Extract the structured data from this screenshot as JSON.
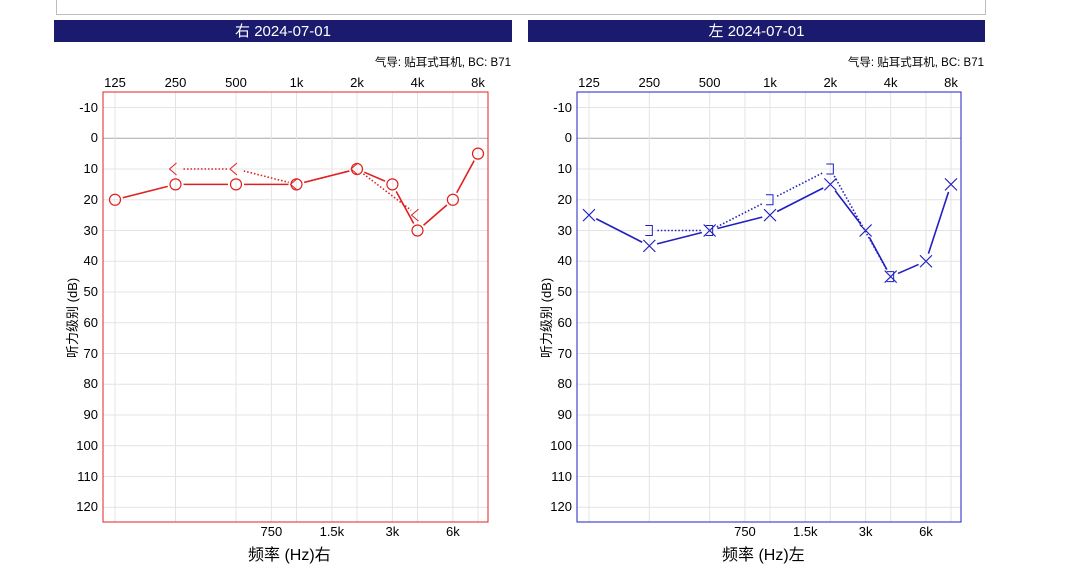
{
  "chart_data": [
    {
      "type": "line",
      "title": "右 2024-07-01",
      "subtitle": "气导: 贴耳式耳机, BC: B71",
      "xlabel": "频率 (Hz)右",
      "ylabel": "听力级别 (dB)",
      "x_ticks_top": [
        "125",
        "250",
        "500",
        "1k",
        "2k",
        "4k",
        "8k"
      ],
      "x_ticks_bottom": [
        "750",
        "1.5k",
        "3k",
        "6k"
      ],
      "y_ticks": [
        "-10",
        "0",
        "10",
        "20",
        "30",
        "40",
        "50",
        "60",
        "70",
        "80",
        "90",
        "100",
        "110",
        "120"
      ],
      "ylim": [
        -15,
        125
      ],
      "y_inverted": true,
      "color": "#e02020",
      "series": [
        {
          "marker": "circle",
          "style": "solid",
          "points": [
            [
              "125",
              20
            ],
            [
              "250",
              15
            ],
            [
              "500",
              15
            ],
            [
              "1k",
              15
            ],
            [
              "2k",
              10
            ],
            [
              "3k",
              15
            ],
            [
              "4k",
              30
            ],
            [
              "6k",
              20
            ],
            [
              "8k",
              5
            ]
          ]
        },
        {
          "marker": "bracket-left",
          "style": "dotted",
          "points": [
            [
              "250",
              10
            ],
            [
              "500",
              10
            ],
            [
              "1k",
              15
            ],
            [
              "2k",
              10
            ],
            [
              "4k",
              25
            ]
          ]
        }
      ]
    },
    {
      "type": "line",
      "title": "左 2024-07-01",
      "subtitle": "气导: 贴耳式耳机, BC: B71",
      "xlabel": "频率 (Hz)左",
      "ylabel": "听力级别 (dB)",
      "x_ticks_top": [
        "125",
        "250",
        "500",
        "1k",
        "2k",
        "4k",
        "8k"
      ],
      "x_ticks_bottom": [
        "750",
        "1.5k",
        "3k",
        "6k"
      ],
      "y_ticks": [
        "-10",
        "0",
        "10",
        "20",
        "30",
        "40",
        "50",
        "60",
        "70",
        "80",
        "90",
        "100",
        "110",
        "120"
      ],
      "ylim": [
        -15,
        125
      ],
      "y_inverted": true,
      "color": "#2020c0",
      "series": [
        {
          "marker": "x",
          "style": "solid",
          "points": [
            [
              "125",
              25
            ],
            [
              "250",
              35
            ],
            [
              "500",
              30
            ],
            [
              "1k",
              25
            ],
            [
              "2k",
              15
            ],
            [
              "3k",
              30
            ],
            [
              "4k",
              45
            ],
            [
              "6k",
              40
            ],
            [
              "8k",
              15
            ]
          ]
        },
        {
          "marker": "bracket-right",
          "style": "dotted",
          "points": [
            [
              "250",
              30
            ],
            [
              "500",
              30
            ],
            [
              "1k",
              20
            ],
            [
              "2k",
              10
            ],
            [
              "4k",
              45
            ]
          ]
        }
      ]
    }
  ]
}
